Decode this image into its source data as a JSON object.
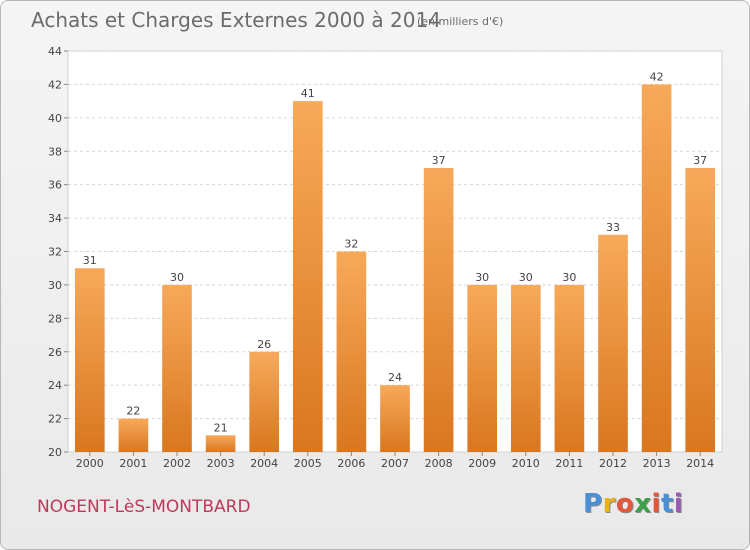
{
  "chart_data": {
    "type": "bar",
    "title": "Achats et Charges Externes 2000 à 2014",
    "unit": "(en milliers d'€)",
    "categories": [
      "2000",
      "2001",
      "2002",
      "2003",
      "2004",
      "2005",
      "2006",
      "2007",
      "2008",
      "2009",
      "2010",
      "2011",
      "2012",
      "2013",
      "2014"
    ],
    "values": [
      31,
      22,
      30,
      21,
      26,
      41,
      32,
      24,
      37,
      30,
      30,
      30,
      33,
      42,
      37
    ],
    "ylim": [
      20,
      44
    ],
    "yticks": [
      20,
      22,
      24,
      26,
      28,
      30,
      32,
      34,
      36,
      38,
      40,
      42,
      44
    ],
    "grid": true,
    "bar_color_top": "#f7a95a",
    "bar_color_bottom": "#d9771f"
  },
  "commune": "NOGENT-LèS-MONTBARD",
  "logo": {
    "letters": [
      "P",
      "r",
      "o",
      "x",
      "i",
      "t",
      "i"
    ],
    "colors": [
      "#4a90d9",
      "#e8b21f",
      "#e5573a",
      "#3aa04a",
      "#e5573a",
      "#4a90d9",
      "#9b59b6"
    ]
  }
}
